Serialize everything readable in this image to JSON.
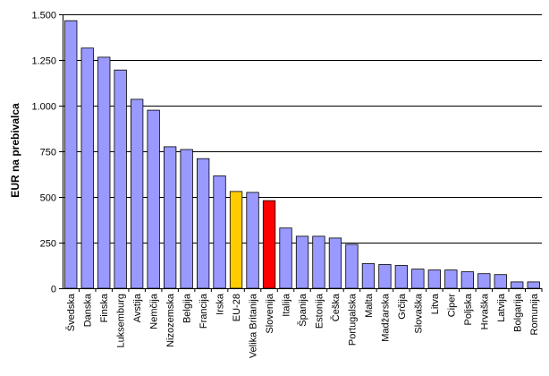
{
  "chart_data": {
    "type": "bar",
    "title": "",
    "xlabel": "",
    "ylabel": "EUR na prebivalca",
    "ylim": [
      0,
      1500
    ],
    "yticks": [
      0,
      250,
      500,
      750,
      1000,
      1250,
      1500
    ],
    "ytick_labels": [
      "0",
      "250",
      "500",
      "750",
      "1.000",
      "1.250",
      "1.500"
    ],
    "grid": true,
    "legend": "none",
    "categories": [
      "Švedska",
      "Danska",
      "Finska",
      "Luksemburg",
      "Avstija",
      "Nemčija",
      "Nizozemska",
      "Belgija",
      "Francija",
      "Irska",
      "EU-28",
      "Velika Britanija",
      "Slovenija",
      "Italija",
      "Španija",
      "Estonija",
      "Češka",
      "Portugalska",
      "Malta",
      "Madžarska",
      "Grčija",
      "Slovaška",
      "Litva",
      "Ciper",
      "Poljska",
      "Hrvaška",
      "Latvija",
      "Bolgarija",
      "Romunija"
    ],
    "values": [
      1465,
      1315,
      1265,
      1195,
      1035,
      975,
      775,
      760,
      710,
      615,
      530,
      525,
      480,
      330,
      285,
      285,
      275,
      240,
      135,
      130,
      125,
      105,
      100,
      100,
      90,
      80,
      75,
      35,
      35
    ],
    "colors": {
      "default": "#9999ff",
      "highlight": {
        "EU-28": "#ffcc00",
        "Slovenija": "#ff0000"
      },
      "bar_stroke": "#000000",
      "grid": "#000000",
      "axis": "#000000"
    }
  }
}
